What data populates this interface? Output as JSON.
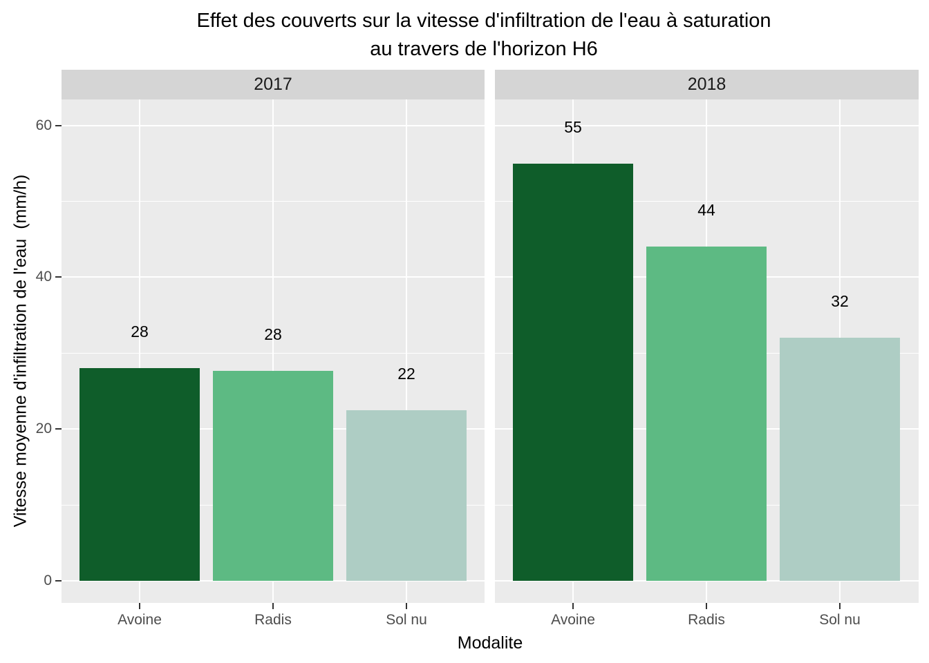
{
  "chart_data": {
    "type": "bar",
    "title": "Effet des couverts sur la vitesse d'infiltration de l'eau à saturation au travers de l'horizon H6",
    "title_lines": [
      "Effet des couverts sur la vitesse d'infiltration de l'eau à saturation",
      "au travers de l'horizon H6"
    ],
    "xlabel": "Modalite",
    "ylabel": "Vitesse moyenne d'infiltration de l'eau  (mm/h)",
    "categories": [
      "Avoine",
      "Radis",
      "Sol nu"
    ],
    "facets": [
      {
        "label": "2017",
        "bar_labels": [
          "28",
          "28",
          "22"
        ],
        "values": [
          28,
          28,
          22
        ],
        "values_precise": [
          28,
          27.7,
          22.5
        ]
      },
      {
        "label": "2018",
        "bar_labels": [
          "55",
          "44",
          "32"
        ],
        "values": [
          55,
          44,
          32
        ],
        "values_precise": [
          55,
          44,
          32
        ]
      }
    ],
    "y_ticks": [
      0,
      20,
      40,
      60
    ],
    "y_minor_ticks": [
      10,
      30,
      50
    ],
    "ylim": [
      -3.2,
      63.5
    ],
    "grid": true,
    "legend_position": "none",
    "bar_width_fraction": 0.9
  },
  "style": {
    "bar_colors": [
      "#0F5D2A",
      "#5DBA83",
      "#AECDC4"
    ],
    "panel_background": "#EBEBEB",
    "strip_background": "#D5D5D5",
    "gridline_color": "#FFFFFF",
    "tick_mark_color": "#333333",
    "axis_text_color": "#4D4D4D",
    "strip_text_color": "#1A1A1A",
    "title_color": "#000000",
    "page_background": "#FFFFFF"
  }
}
